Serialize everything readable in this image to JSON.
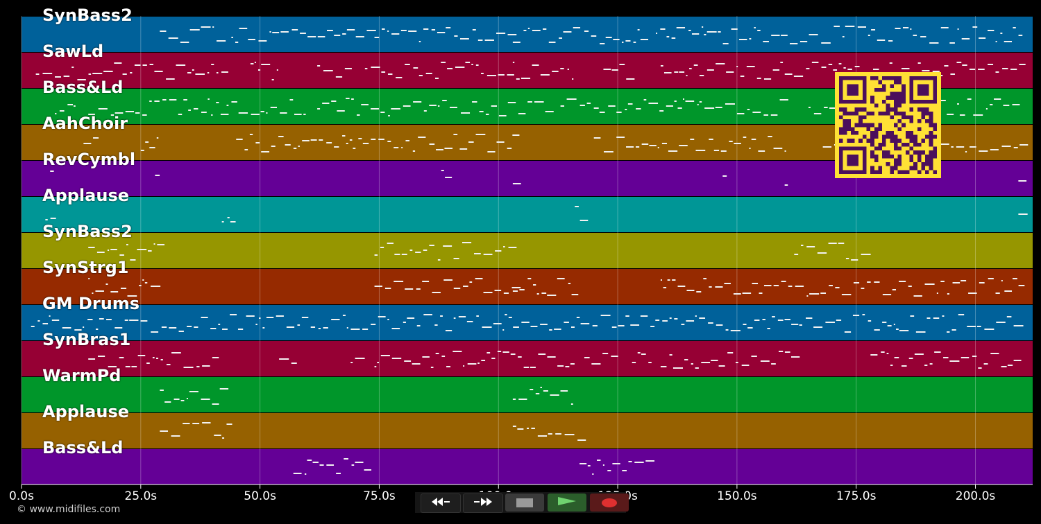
{
  "tracks": [
    {
      "name": "SynBass2",
      "color": "#00619a"
    },
    {
      "name": "SawLd",
      "color": "#960034"
    },
    {
      "name": "Bass&Ld",
      "color": "#00962a"
    },
    {
      "name": "AahChoir",
      "color": "#966100"
    },
    {
      "name": "RevCymbl",
      "color": "#640096"
    },
    {
      "name": "Applause",
      "color": "#009696"
    },
    {
      "name": "SynBass2",
      "color": "#969600"
    },
    {
      "name": "SynStrg1",
      "color": "#962a00"
    },
    {
      "name": "GM Drums",
      "color": "#00619a"
    },
    {
      "name": "SynBras1",
      "color": "#960034"
    },
    {
      "name": "WarmPd",
      "color": "#00962a"
    },
    {
      "name": "Applause",
      "color": "#966100"
    },
    {
      "name": "Bass&Ld",
      "color": "#640096"
    }
  ],
  "time_axis": {
    "ticks": [
      {
        "value": 0,
        "label": "0.0s"
      },
      {
        "value": 25,
        "label": "25.0s"
      },
      {
        "value": 50,
        "label": "50.0s"
      },
      {
        "value": 75,
        "label": "75.0s"
      },
      {
        "value": 100,
        "label": "100.0s"
      },
      {
        "value": 125,
        "label": "125.0s"
      },
      {
        "value": 150,
        "label": "150.0s"
      },
      {
        "value": 175,
        "label": "175.0s"
      },
      {
        "value": 200,
        "label": "200.0s"
      }
    ],
    "max_seconds": 212
  },
  "transport": {
    "rewind_icon": "rewind-icon",
    "fast_forward_icon": "fast-forward-icon",
    "stop_icon": "stop-icon",
    "play_icon": "play-icon",
    "record_icon": "record-icon"
  },
  "copyright": "© www.midifiles.com",
  "colors": {
    "background": "#000000",
    "qr_background": "#ffe135",
    "qr_modules": "#4b0f5c"
  }
}
